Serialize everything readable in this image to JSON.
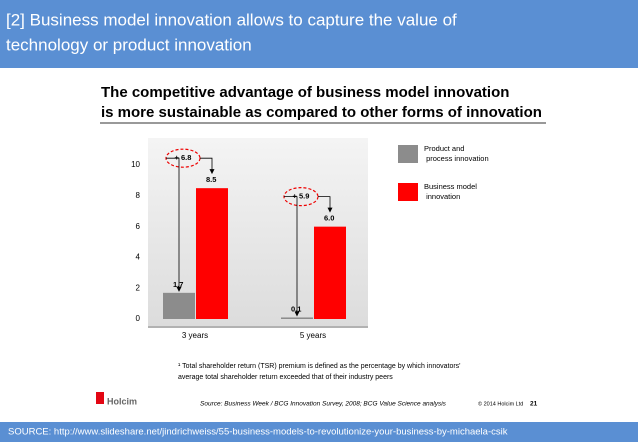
{
  "header": {
    "title_lines": [
      "[2] Business model innovation allows to capture the value of",
      "technology or product innovation"
    ]
  },
  "slide": {
    "title_lines": [
      "The competitive advantage of business model innovation",
      "is more sustainable as compared to other forms of innovation"
    ],
    "footnote_lines": [
      "¹ Total shareholder return (TSR) premium is defined as the percentage by which innovators'",
      "average total shareholder return exceeded that of their industry peers"
    ],
    "logo": "Holcim",
    "source": "Source: Business Week / BCG Innovation Survey, 2008; BCG Value Science analysis",
    "copyright": "© 2014 Holcim Ltd",
    "page_number": "21"
  },
  "chart_data": {
    "type": "bar",
    "categories": [
      "3 years",
      "5 years"
    ],
    "series": [
      {
        "name": "Product and process innovation",
        "color": "#8c8c8c",
        "values": [
          1.7,
          0.1
        ],
        "value_labels": [
          "1.7",
          "0.1"
        ]
      },
      {
        "name": "Business model innovation",
        "color": "#ff0000",
        "values": [
          8.5,
          6
        ],
        "value_labels": [
          "8.5",
          "6.0"
        ]
      }
    ],
    "annotations": [
      "+ 6.8",
      "+ 5.9"
    ],
    "ylim": [
      0,
      11.5
    ],
    "yticks": [
      0,
      2,
      4,
      6,
      8,
      10
    ],
    "grid": false
  },
  "footer": {
    "source": "SOURCE: http://www.slideshare.net/jindrichweiss/55-business-models-to-revolutionize-your-business-by-michaela-csik"
  }
}
